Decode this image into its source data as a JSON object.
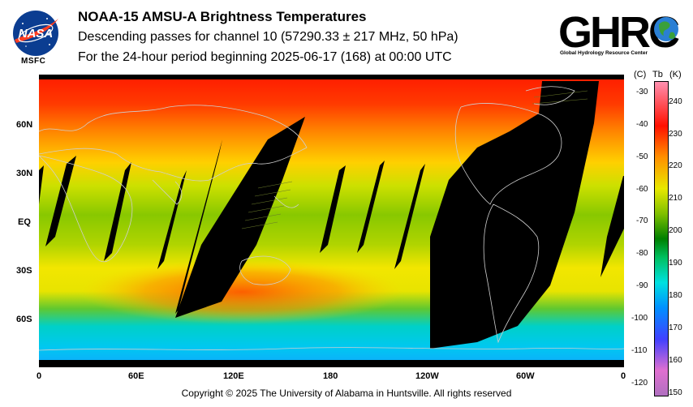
{
  "header": {
    "title": "NOAA-15 AMSU-A Brightness Temperatures",
    "subtitle": "Descending passes for channel 10 (57290.33 ± 217 MHz, 50 hPa)",
    "period": "For the 24-hour period beginning 2025-06-17 (168) at 00:00 UTC"
  },
  "logos": {
    "nasa_label": "NASA",
    "msfc_label": "MSFC",
    "ghrc_word": "GHRC",
    "ghrc_sub": "Global Hydrology Resource Center"
  },
  "map": {
    "lat_labels": [
      "60N",
      "30N",
      "EQ",
      "30S",
      "60S"
    ],
    "lon_labels": [
      "0",
      "60E",
      "120E",
      "180",
      "120W",
      "60W",
      "0"
    ]
  },
  "colorbar": {
    "header_c": "(C)",
    "header_tb": "Tb",
    "header_k": "(K)",
    "celsius_ticks": [
      "-30",
      "-40",
      "-50",
      "-60",
      "-70",
      "-80",
      "-90",
      "-100",
      "-110",
      "-120"
    ],
    "kelvin_ticks": [
      "240",
      "230",
      "220",
      "210",
      "200",
      "190",
      "180",
      "170",
      "160",
      "150"
    ],
    "colors": [
      "#7030a0",
      "#c060c0",
      "#0000ff",
      "#00a0ff",
      "#00e0e0",
      "#00c080",
      "#008000",
      "#80c000",
      "#e0e000",
      "#ffa000",
      "#ff4000",
      "#ff0000",
      "#ff80c0"
    ]
  },
  "footer": {
    "copyright": "Copyright © 2025 The University of Alabama in Huntsville.  All rights reserved"
  }
}
